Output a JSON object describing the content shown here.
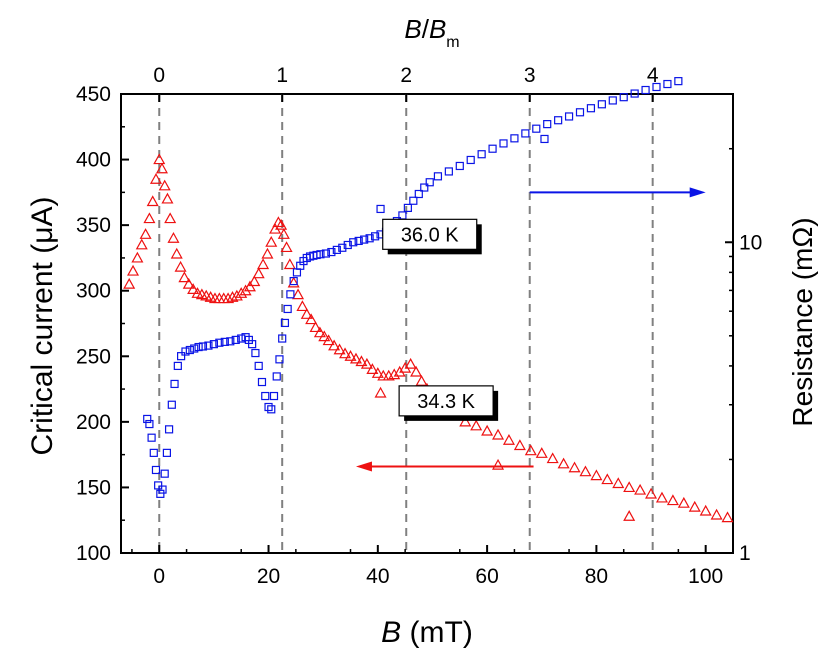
{
  "chart_data": {
    "type": "scatter",
    "xlabel": {
      "main": "B",
      "unit": " (mT)"
    },
    "x_ticks": [
      0,
      20,
      40,
      60,
      80,
      100
    ],
    "xlim": [
      -7,
      105
    ],
    "ylabel_left": "Critical current (μA)",
    "ylim_left": [
      100,
      450
    ],
    "y_ticks_left": [
      100,
      150,
      200,
      250,
      300,
      350,
      400,
      450
    ],
    "ylabel_right": "Resistance (mΩ)",
    "ylim_right_log": [
      1,
      30
    ],
    "y_ticks_right": [
      1,
      10
    ],
    "top_axis": {
      "label_main": "B",
      "label_sep": "/",
      "label_main2": "B",
      "label_sub": "m",
      "ticks": [
        "0",
        "1",
        "2",
        "3",
        "4"
      ],
      "tick_positions_mT": [
        0,
        22.5,
        45.2,
        67.8,
        90.3
      ]
    },
    "grid": false,
    "series": [
      {
        "label": "34.3 K",
        "axis": "left",
        "marker": "triangle-open",
        "color": "#ee1111",
        "x": [
          -5.5,
          -4.8,
          -4.0,
          -3.2,
          -2.5,
          -1.8,
          -1.2,
          -0.6,
          0.0,
          0.5,
          1.0,
          1.5,
          2.0,
          2.6,
          3.2,
          3.9,
          4.6,
          5.4,
          6.2,
          7.0,
          7.8,
          8.6,
          9.4,
          10.2,
          11.0,
          11.8,
          12.6,
          13.4,
          14.2,
          15.0,
          15.8,
          16.6,
          17.4,
          18.2,
          19.0,
          19.8,
          20.5,
          21.2,
          21.8,
          22.3,
          22.8,
          23.3,
          23.9,
          24.6,
          25.4,
          26.2,
          27.0,
          27.8,
          28.6,
          29.4,
          30.2,
          31.0,
          32.0,
          33.0,
          34.0,
          35.0,
          36.0,
          37.0,
          38.0,
          39.0,
          40.0,
          41.0,
          42.0,
          43.0,
          44.0,
          45.0,
          46.0,
          47.0,
          48.0,
          49.0,
          50.0,
          52.0,
          54.0,
          56.0,
          58.0,
          60.0,
          62.0,
          64.0,
          66.0,
          68.0,
          70.0,
          72.0,
          74.0,
          76.0,
          78.0,
          80.0,
          82.0,
          84.0,
          86.0,
          88.0,
          90.0,
          92.0,
          94.0,
          96.0,
          98.0,
          100.0,
          102.0,
          104.0,
          40.5,
          62.0,
          86.0
        ],
        "y": [
          305,
          315,
          325,
          335,
          343,
          355,
          368,
          385,
          400,
          393,
          380,
          370,
          355,
          340,
          328,
          318,
          310,
          305,
          301,
          298,
          297,
          296,
          295,
          294,
          294,
          294,
          294,
          295,
          296,
          298,
          300,
          303,
          307,
          313,
          320,
          328,
          337,
          347,
          352,
          350,
          343,
          333,
          320,
          306,
          297,
          288,
          282,
          278,
          272,
          268,
          265,
          262,
          258,
          255,
          252,
          250,
          248,
          246,
          244,
          240,
          237,
          235,
          235,
          236,
          238,
          241,
          244,
          238,
          231,
          225,
          218,
          210,
          205,
          200,
          197,
          193,
          190,
          186,
          182,
          178,
          176,
          172,
          168,
          165,
          162,
          159,
          156,
          153,
          150,
          148,
          145,
          142,
          140,
          138,
          135,
          132,
          129,
          127,
          222,
          167,
          128
        ]
      },
      {
        "label": "36.0 K",
        "axis": "right",
        "marker": "square-open",
        "color": "#0a14e6",
        "x": [
          -2.2,
          -1.8,
          -1.4,
          -1.0,
          -0.6,
          -0.2,
          0.2,
          0.6,
          1.0,
          1.4,
          1.8,
          2.3,
          2.8,
          3.4,
          4.0,
          4.8,
          5.6,
          6.4,
          7.2,
          8.0,
          9.0,
          10.0,
          11.0,
          12.0,
          13.0,
          14.0,
          15.0,
          15.8,
          16.4,
          17.0,
          17.6,
          18.2,
          18.8,
          19.4,
          20.0,
          20.5,
          21.0,
          21.5,
          22.0,
          22.5,
          23.0,
          23.5,
          24.0,
          24.6,
          25.2,
          25.8,
          26.4,
          27.0,
          27.6,
          28.2,
          28.8,
          29.5,
          30.5,
          31.5,
          32.5,
          33.5,
          34.5,
          35.5,
          36.5,
          37.5,
          38.5,
          39.5,
          40.5,
          41.5,
          42.5,
          43.5,
          44.5,
          45.5,
          46.5,
          47.5,
          48.5,
          49.5,
          51.0,
          53.0,
          55.0,
          57.0,
          59.0,
          61.0,
          63.0,
          65.0,
          67.0,
          69.0,
          71.0,
          73.0,
          75.0,
          77.0,
          79.0,
          81.0,
          83.0,
          85.0,
          87.0,
          89.0,
          91.0,
          93.0,
          95.0,
          40.5,
          70.5
        ],
        "y": [
          2.7,
          2.6,
          2.35,
          2.1,
          1.85,
          1.65,
          1.55,
          1.6,
          1.8,
          2.1,
          2.5,
          3.0,
          3.5,
          4.0,
          4.3,
          4.45,
          4.5,
          4.55,
          4.6,
          4.62,
          4.65,
          4.7,
          4.75,
          4.78,
          4.8,
          4.85,
          4.9,
          4.95,
          4.85,
          4.7,
          4.4,
          4.0,
          3.55,
          3.2,
          2.95,
          2.9,
          3.2,
          3.7,
          4.2,
          4.9,
          5.5,
          6.1,
          6.8,
          7.5,
          8.0,
          8.4,
          8.7,
          8.9,
          9.0,
          9.05,
          9.1,
          9.15,
          9.2,
          9.3,
          9.45,
          9.6,
          9.8,
          10.0,
          10.1,
          10.2,
          10.3,
          10.45,
          10.6,
          10.8,
          11.2,
          11.7,
          12.2,
          12.9,
          13.6,
          14.3,
          15.0,
          15.6,
          16.3,
          16.9,
          17.6,
          18.4,
          19.2,
          20.0,
          20.8,
          21.6,
          22.4,
          23.2,
          24.0,
          24.7,
          25.4,
          26.2,
          27.0,
          27.8,
          28.6,
          29.3,
          30.1,
          30.9,
          31.6,
          32.3,
          33.0,
          12.8,
          21.5
        ]
      }
    ],
    "dashed_vlines_mT": [
      0,
      22.5,
      45.2,
      67.8,
      90.3
    ],
    "annotations": [
      {
        "text": "36.0 K",
        "color": "#0a14e6",
        "at_x": 49.5,
        "at_y_left": 343
      },
      {
        "text": "34.3 K",
        "color": "#ee1111",
        "at_x": 52.5,
        "at_y_left": 216
      }
    ],
    "arrows": [
      {
        "series": "36.0 K",
        "direction": "right",
        "color": "#0a14e6",
        "x_from": 67.8,
        "x_to": 100,
        "y_left": 375
      },
      {
        "series": "34.3 K",
        "direction": "left",
        "color": "#ee1111",
        "x_from": 68.5,
        "x_to": 36,
        "y_left": 166
      }
    ]
  },
  "styles": {
    "axis_color": "#000000",
    "dash_color": "#808080"
  }
}
